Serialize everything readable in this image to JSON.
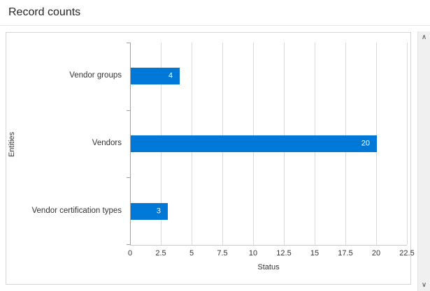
{
  "page": {
    "title": "Record counts"
  },
  "scrollbar": {
    "up_icon": "∧",
    "down_icon": "∨"
  },
  "chart_data": {
    "type": "bar",
    "orientation": "horizontal",
    "title": "Record counts",
    "categories": [
      "Vendor groups",
      "Vendors",
      "Vendor certification types"
    ],
    "values": [
      4,
      20,
      3
    ],
    "xlabel": "Status",
    "ylabel": "Entities",
    "xticks": [
      0,
      2.5,
      5,
      7.5,
      10,
      12.5,
      15,
      17.5,
      20,
      22.5
    ],
    "xlim": [
      0,
      22.5
    ],
    "grid": true,
    "legend": false,
    "bar_color": "#0078D7",
    "value_label_color": "#ffffff",
    "gridline_color": "#d9d9d9"
  }
}
